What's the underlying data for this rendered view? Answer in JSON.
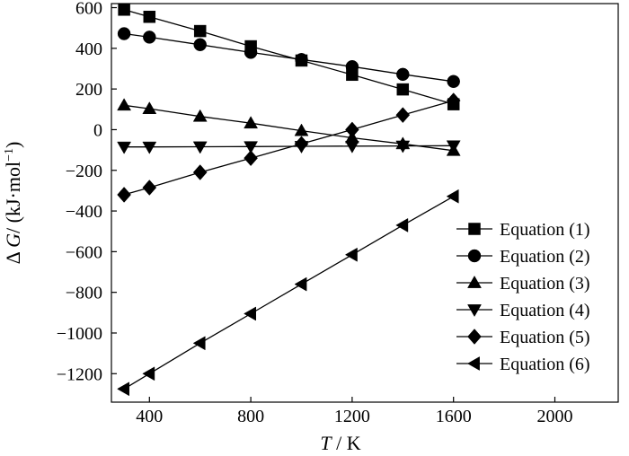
{
  "chart_data": {
    "type": "line",
    "xlabel_italic": "T",
    "xlabel_rest": " / K",
    "ylabel_pre": "Δ ",
    "ylabel_italic": "G",
    "ylabel_rest": "/ (kJ·mol",
    "ylabel_sup": "−1",
    "ylabel_close": ")",
    "xlim": [
      250,
      2250
    ],
    "ylim": [
      -1340,
      620
    ],
    "xticks": [
      400,
      800,
      1200,
      1600,
      2000
    ],
    "xtick_labels": [
      "400",
      "800",
      "1200",
      "1600",
      "2000"
    ],
    "yticks": [
      600,
      400,
      200,
      0,
      -200,
      -400,
      -600,
      -800,
      -1000,
      -1200
    ],
    "ytick_labels": [
      "600",
      "400",
      "200",
      "0",
      "−200",
      "−400",
      "−600",
      "−800",
      "−1000",
      "−1200"
    ],
    "grid": false,
    "legend_position": "bottom-right",
    "series": [
      {
        "name": "Equation (1)",
        "marker": "square",
        "x": [
          300,
          400,
          600,
          800,
          1000,
          1200,
          1400,
          1600
        ],
        "y": [
          590,
          555,
          485,
          410,
          340,
          270,
          198,
          125
        ]
      },
      {
        "name": "Equation (2)",
        "marker": "circle",
        "x": [
          300,
          400,
          600,
          800,
          1000,
          1200,
          1400,
          1600
        ],
        "y": [
          472,
          455,
          418,
          380,
          345,
          310,
          272,
          237
        ]
      },
      {
        "name": "Equation (3)",
        "marker": "triangle-up",
        "x": [
          300,
          400,
          600,
          800,
          1000,
          1200,
          1400,
          1600
        ],
        "y": [
          120,
          103,
          65,
          32,
          -5,
          -40,
          -70,
          -103
        ]
      },
      {
        "name": "Equation (4)",
        "marker": "triangle-down",
        "x": [
          300,
          400,
          600,
          800,
          1000,
          1200,
          1400,
          1600
        ],
        "y": [
          -85,
          -85,
          -84,
          -83,
          -82,
          -81,
          -80,
          -79
        ]
      },
      {
        "name": "Equation (5)",
        "marker": "diamond",
        "x": [
          300,
          400,
          600,
          800,
          1000,
          1200,
          1400,
          1600
        ],
        "y": [
          -320,
          -285,
          -210,
          -140,
          -70,
          0,
          72,
          143
        ]
      },
      {
        "name": "Equation (6)",
        "marker": "triangle-left",
        "x": [
          300,
          400,
          600,
          800,
          1000,
          1200,
          1400,
          1600
        ],
        "y": [
          -1275,
          -1200,
          -1050,
          -905,
          -760,
          -615,
          -470,
          -328
        ]
      }
    ]
  }
}
